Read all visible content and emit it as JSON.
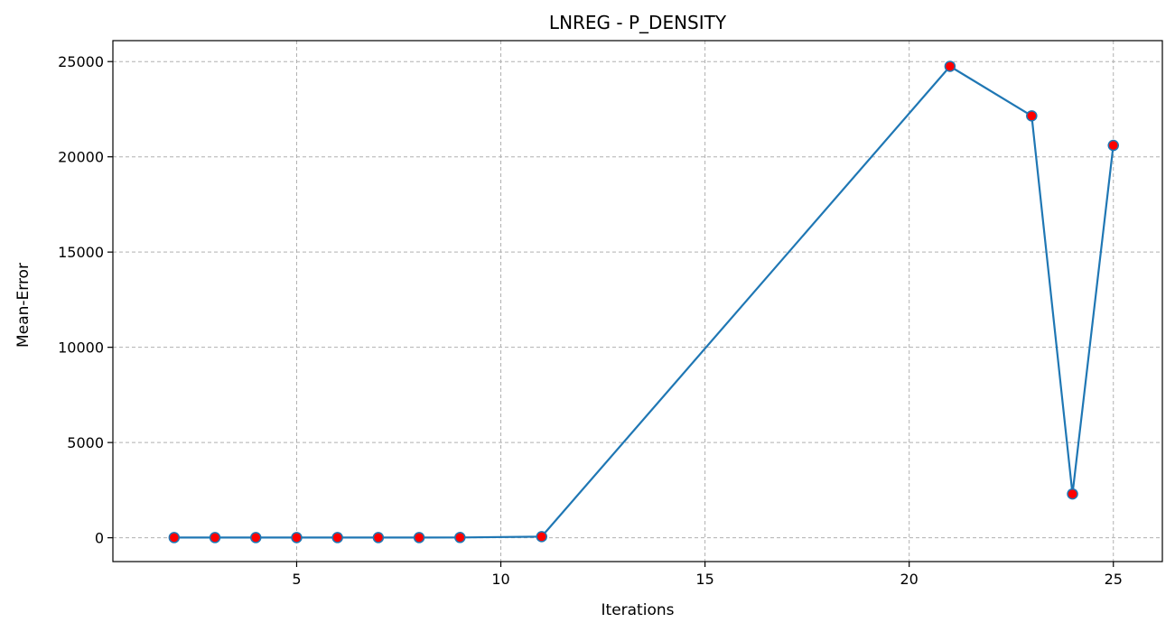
{
  "chart_data": {
    "type": "line",
    "title": "LNREG - P_DENSITY",
    "xlabel": "Iterations",
    "ylabel": "Mean-Error",
    "xlim": [
      0.5,
      26.2
    ],
    "ylim": [
      -1250,
      26100
    ],
    "xticks": [
      5,
      10,
      15,
      20,
      25
    ],
    "yticks": [
      0,
      5000,
      10000,
      15000,
      20000,
      25000
    ],
    "grid": true,
    "series": [
      {
        "name": "Mean-Error",
        "color": "#1f77b4",
        "marker_face": "#ff0000",
        "marker_edge": "#1f77b4",
        "x": [
          2,
          3,
          4,
          5,
          6,
          7,
          8,
          9,
          11,
          21,
          23,
          24,
          25
        ],
        "y": [
          10,
          10,
          10,
          10,
          10,
          10,
          10,
          15,
          60,
          24750,
          22150,
          2300,
          20600
        ]
      }
    ]
  }
}
